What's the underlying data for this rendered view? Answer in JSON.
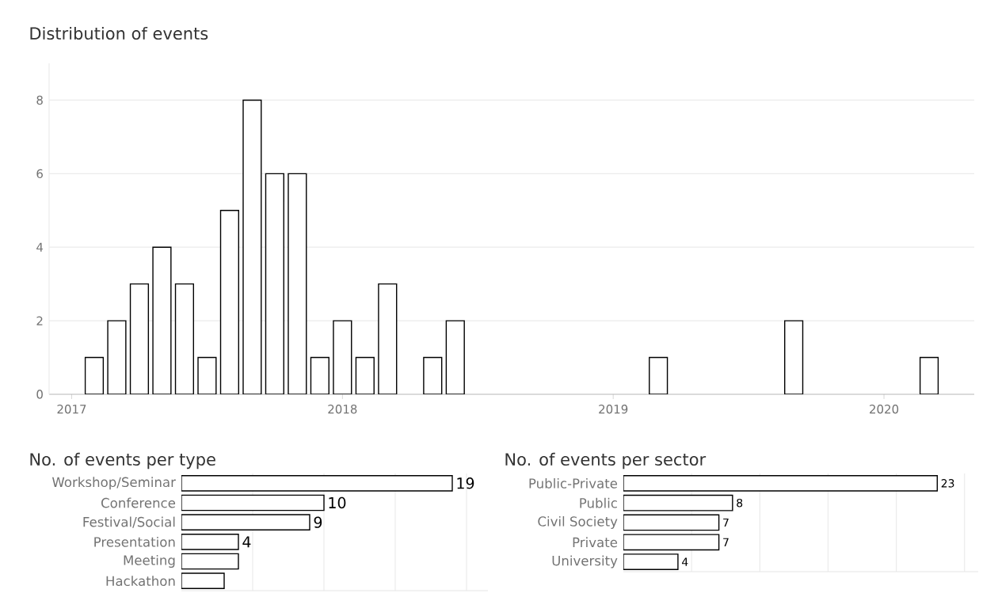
{
  "chart_data": [
    {
      "type": "bar",
      "title": "Distribution of events",
      "x": [
        "2017-02",
        "2017-03",
        "2017-04",
        "2017-05",
        "2017-06",
        "2017-07",
        "2017-08",
        "2017-09",
        "2017-10",
        "2017-11",
        "2017-12",
        "2018-01",
        "2018-02",
        "2018-03",
        "2018-05",
        "2018-06",
        "2019-03",
        "2019-09",
        "2020-03"
      ],
      "values": [
        1,
        2,
        3,
        4,
        3,
        1,
        5,
        8,
        6,
        6,
        1,
        2,
        1,
        3,
        1,
        2,
        1,
        2,
        1
      ],
      "color": "#ffffff",
      "xlim": [
        "2016-12",
        "2020-05"
      ],
      "xticks": [
        "2017",
        "2018",
        "2019",
        "2020"
      ],
      "ylim": [
        0,
        9
      ],
      "yticks": [
        0,
        2,
        4,
        6,
        8
      ],
      "grid": "y"
    },
    {
      "type": "bar",
      "orientation": "horizontal",
      "title": "No. of events per type",
      "categories": [
        "Workshop/Seminar",
        "Conference",
        "Festival/Social",
        "Presentation",
        "Meeting",
        "Hackathon"
      ],
      "values": [
        19,
        10,
        9,
        4,
        4,
        3
      ],
      "value_labels": [
        "19",
        "10",
        "9",
        "4",
        null,
        null
      ],
      "color": "#ffffff",
      "xlim": [
        0,
        21.5
      ],
      "xticks": [
        {
          "value": 5,
          "label": null
        },
        {
          "value": 10,
          "label": null
        },
        {
          "value": 15,
          "label": null
        },
        {
          "value": 20,
          "label": null
        }
      ],
      "tick_labels": "y",
      "grid": "x"
    },
    {
      "type": "bar",
      "orientation": "horizontal",
      "title": "No. of events per sector",
      "categories": [
        "Public-Private",
        "Public",
        "Civil Society",
        "Private",
        "University"
      ],
      "values": [
        23,
        8,
        7,
        7,
        4
      ],
      "data_labels": true,
      "color": "#ffffff",
      "xlim": [
        0,
        26
      ],
      "xticks": [
        {
          "value": 5,
          "label": null
        },
        {
          "value": 10,
          "label": null
        },
        {
          "value": 15,
          "label": null
        },
        {
          "value": 20,
          "label": null
        },
        {
          "value": 25,
          "label": null
        }
      ],
      "tick_labels": "y",
      "grid": "x"
    }
  ]
}
